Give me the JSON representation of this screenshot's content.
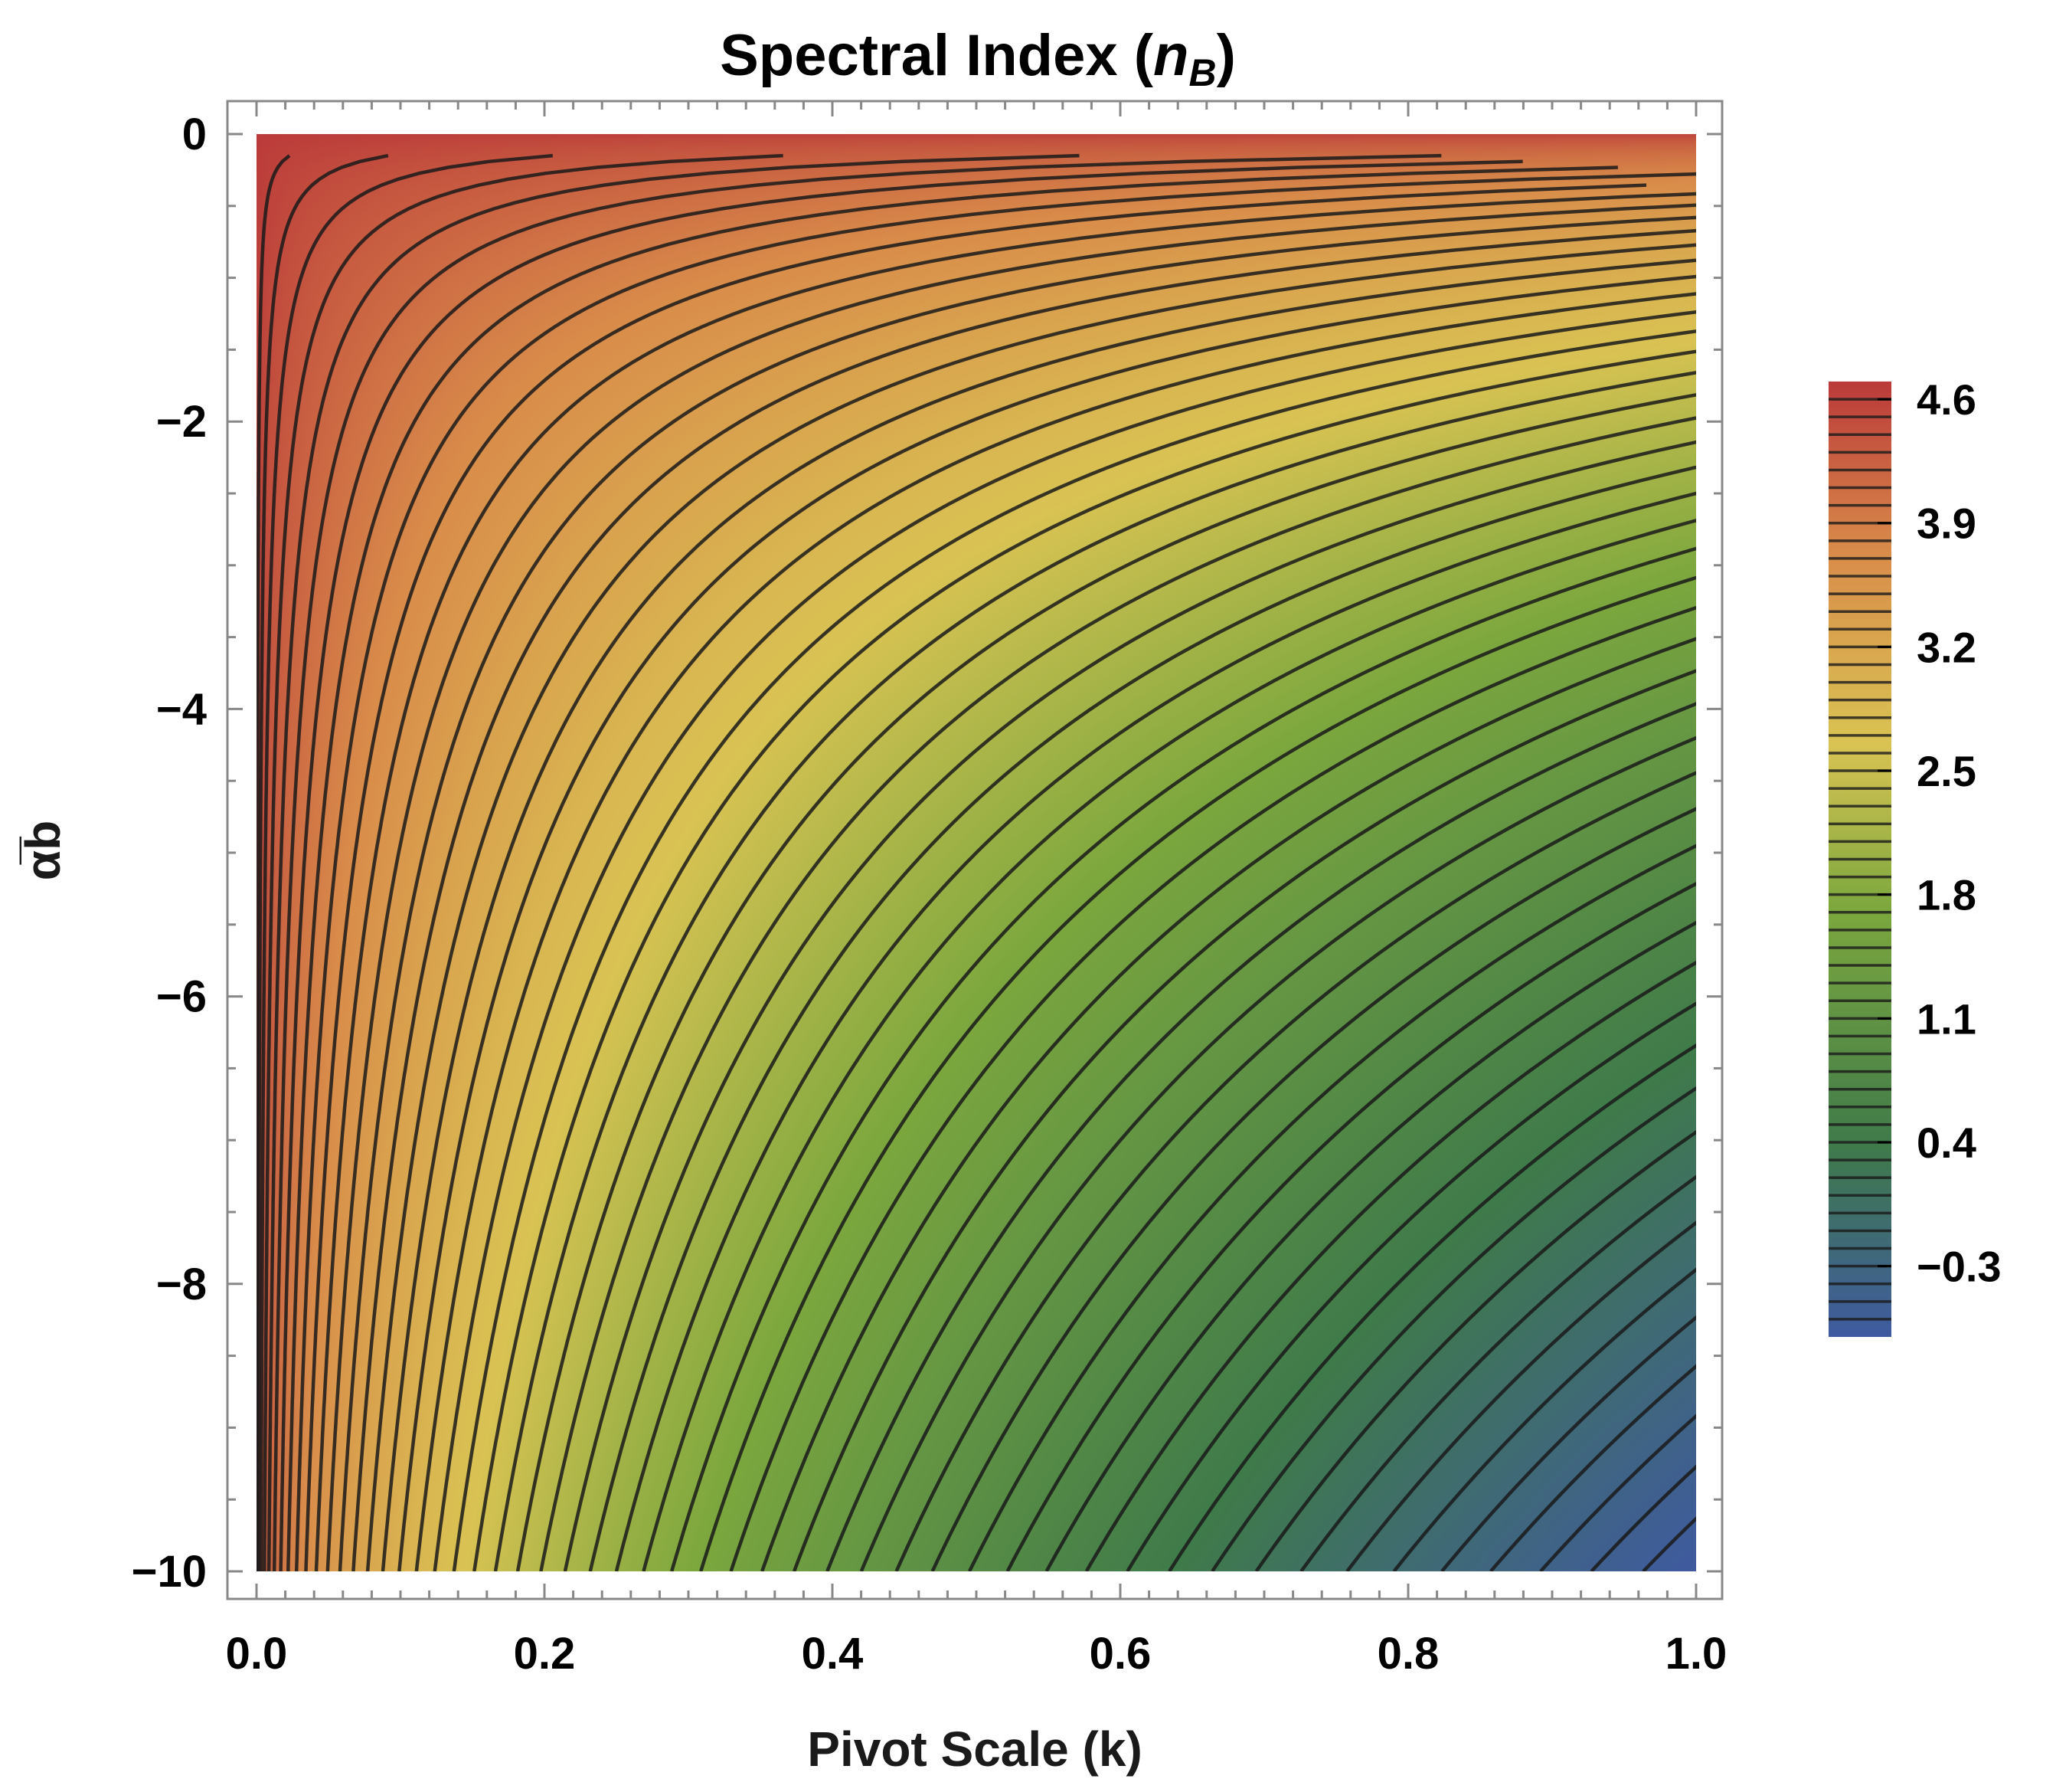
{
  "chart_data": {
    "type": "contour",
    "title": "Spectral Index",
    "title_symbol": "n",
    "title_symbol_subscript": "B",
    "xlabel": "Pivot Scale (k)",
    "ylabel": "α̅b",
    "xlim": [
      0,
      1
    ],
    "ylim": [
      -10,
      0
    ],
    "x_ticks": [
      "0.0",
      "0.2",
      "0.4",
      "0.6",
      "0.8",
      "1.0"
    ],
    "y_ticks": [
      "0",
      "−2",
      "−4",
      "−6",
      "−8",
      "−10"
    ],
    "x_tick_values": [
      0,
      0.2,
      0.4,
      0.6,
      0.8,
      1.0
    ],
    "y_tick_values": [
      0,
      -2,
      -4,
      -6,
      -8,
      -10
    ],
    "value_range": [
      -0.7,
      4.7
    ],
    "contour_step": 0.1,
    "legend": {
      "placement": "right",
      "labels": [
        "4.6",
        "3.9",
        "3.2",
        "2.5",
        "1.8",
        "1.1",
        "0.4",
        "−0.3"
      ],
      "values": [
        4.6,
        3.9,
        3.2,
        2.5,
        1.8,
        1.1,
        0.4,
        -0.3
      ]
    },
    "colors": {
      "high": "#bb3a3a",
      "upper": "#d98c4a",
      "mid": "#d9c353",
      "lower_mid": "#7da83e",
      "low": "#3f7a4a",
      "lowest": "#3f5aa0",
      "contour_line": "#1a1a1a",
      "frame": "#888888"
    }
  }
}
